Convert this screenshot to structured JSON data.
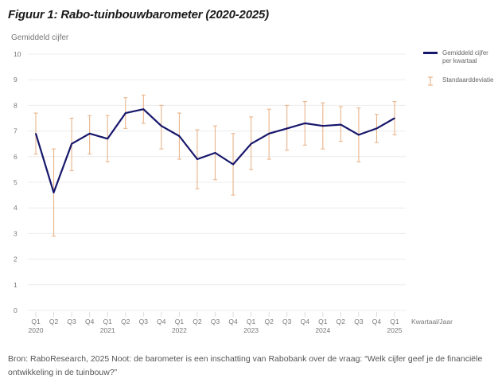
{
  "chart_data": {
    "type": "line",
    "title": "Figuur 1: Rabo-tuinbouwbarometer (2020-2025)",
    "ylabel": "Gemiddeld cijfer",
    "xlabel": "Kwartaal/Jaar",
    "ylim": [
      0,
      10
    ],
    "yticks": [
      "0",
      "1",
      "2",
      "3",
      "4",
      "5",
      "6",
      "7",
      "8",
      "9",
      "10"
    ],
    "grid": true,
    "legend_position": "top-right",
    "categories": [
      {
        "q": "Q1",
        "year": "2020"
      },
      {
        "q": "Q2",
        "year": ""
      },
      {
        "q": "Q3",
        "year": ""
      },
      {
        "q": "Q4",
        "year": ""
      },
      {
        "q": "Q1",
        "year": "2021"
      },
      {
        "q": "Q2",
        "year": ""
      },
      {
        "q": "Q3",
        "year": ""
      },
      {
        "q": "Q4",
        "year": ""
      },
      {
        "q": "Q1",
        "year": "2022"
      },
      {
        "q": "Q2",
        "year": ""
      },
      {
        "q": "Q3",
        "year": ""
      },
      {
        "q": "Q4",
        "year": ""
      },
      {
        "q": "Q1",
        "year": "2023"
      },
      {
        "q": "Q2",
        "year": ""
      },
      {
        "q": "Q3",
        "year": ""
      },
      {
        "q": "Q4",
        "year": ""
      },
      {
        "q": "Q1",
        "year": "2024"
      },
      {
        "q": "Q2",
        "year": ""
      },
      {
        "q": "Q3",
        "year": ""
      },
      {
        "q": "Q4",
        "year": ""
      },
      {
        "q": "Q1",
        "year": "2025"
      }
    ],
    "series": [
      {
        "name": "Gemiddeld cijfer per kwartaal",
        "color": "#16166b",
        "values": [
          6.9,
          4.6,
          6.5,
          6.9,
          6.7,
          7.7,
          7.85,
          7.2,
          6.8,
          5.9,
          6.15,
          5.7,
          6.5,
          6.9,
          7.1,
          7.3,
          7.2,
          7.25,
          6.85,
          7.1,
          7.5
        ]
      }
    ],
    "error_bars": {
      "name": "Standaarddeviatie",
      "color": "#e9b48a",
      "upper": [
        7.7,
        6.3,
        7.5,
        7.6,
        7.6,
        8.3,
        8.4,
        8.0,
        7.7,
        7.05,
        7.2,
        6.9,
        7.55,
        7.85,
        8.0,
        8.15,
        8.1,
        7.95,
        7.9,
        7.65,
        8.15
      ],
      "lower": [
        6.1,
        2.9,
        5.45,
        6.1,
        5.8,
        7.1,
        7.3,
        6.3,
        5.9,
        4.75,
        5.1,
        4.5,
        5.5,
        5.9,
        6.25,
        6.45,
        6.3,
        6.6,
        5.8,
        6.55,
        6.85
      ]
    }
  },
  "legend": {
    "line_label": "Gemiddeld cijfer per kwartaal",
    "error_label": "Standaarddeviatie"
  },
  "footnote": "Bron: RaboResearch, 2025 Noot: de barometer is een inschatting van Rabobank over de vraag: “Welk cijfer geef je de financiële ontwikkeling in de tuinbouw?”"
}
